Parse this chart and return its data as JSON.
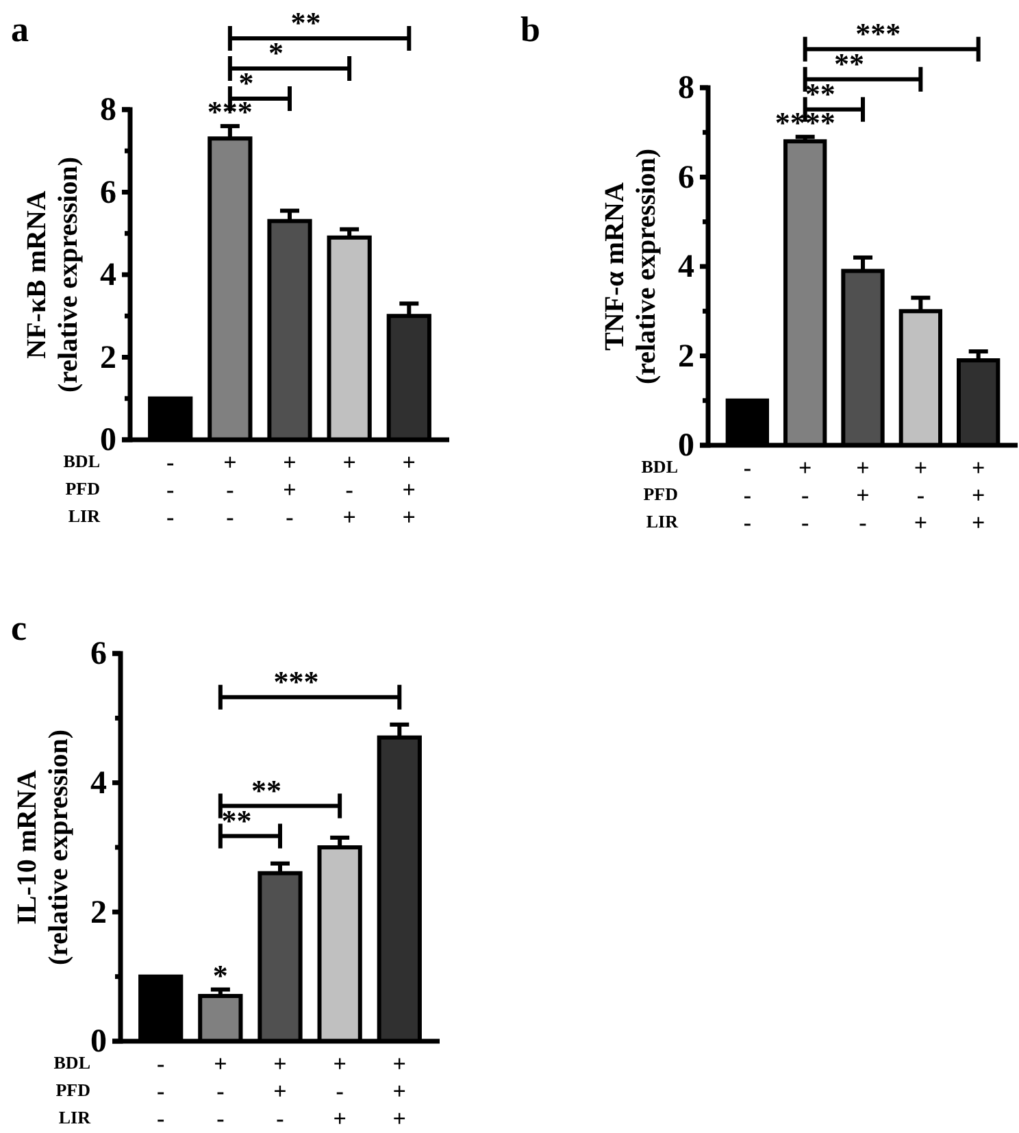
{
  "chart_data": [
    {
      "type": "bar",
      "title": "a",
      "ylabel": "NF-κB mRNA\n(relative expression)",
      "xlabel": "BDL\nPFD\nLIR",
      "categories": [
        "-\n-\n-",
        "+\n-\n-",
        "+\n+\n-",
        "+\n-\n+",
        "+\n+\n+"
      ],
      "values": [
        1,
        7.3,
        5.3,
        4.9,
        3.0
      ],
      "errors": [
        null,
        0.3,
        0.25,
        0.2,
        0.3
      ],
      "colors": [
        "#000000",
        "#808080",
        "#505050",
        "#c0c0c0",
        "#303030"
      ],
      "ylim": [
        0,
        8
      ],
      "yticks": [
        0,
        {
          "value": 1,
          "label": null
        },
        2,
        {
          "value": 3,
          "label": null
        },
        4,
        {
          "value": 5,
          "label": null
        },
        6,
        {
          "value": 7,
          "label": null
        },
        8
      ],
      "grid": false,
      "annotations": [
        "***",
        "*",
        "*",
        "**"
      ]
    },
    {
      "type": "bar",
      "title": "b",
      "ylabel": "TNF-α mRNA\n(relative expression)",
      "xlabel": "BDL\nPFD\nLIR",
      "categories": [
        "-\n-\n-",
        "+\n-\n-",
        "+\n+\n-",
        "+\n-\n+",
        "+\n+\n+"
      ],
      "values": [
        1,
        6.8,
        3.9,
        3.0,
        1.9
      ],
      "errors": [
        null,
        0.1,
        0.3,
        0.3,
        0.2
      ],
      "colors": [
        "#000000",
        "#808080",
        "#505050",
        "#c0c0c0",
        "#303030"
      ],
      "ylim": [
        0,
        8
      ],
      "yticks": [
        0,
        {
          "value": 1,
          "label": null
        },
        2,
        {
          "value": 3,
          "label": null
        },
        4,
        {
          "value": 5,
          "label": null
        },
        6,
        {
          "value": 7,
          "label": null
        },
        8
      ],
      "grid": false,
      "annotations": [
        "****",
        "**",
        "**",
        "***"
      ]
    },
    {
      "type": "bar",
      "title": "c",
      "ylabel": "IL-10 mRNA\n(relative expression)",
      "xlabel": "BDL\nPFD\nLIR",
      "categories": [
        "-\n-\n-",
        "+\n-\n-",
        "+\n+\n-",
        "+\n-\n+",
        "+\n+\n+"
      ],
      "values": [
        1,
        0.7,
        2.6,
        3.0,
        4.7
      ],
      "errors": [
        null,
        0.1,
        0.15,
        0.15,
        0.2
      ],
      "colors": [
        "#000000",
        "#808080",
        "#505050",
        "#c0c0c0",
        "#303030"
      ],
      "ylim": [
        0,
        6
      ],
      "yticks": [
        0,
        {
          "value": 1,
          "label": null
        },
        2,
        {
          "value": 3,
          "label": null
        },
        4,
        {
          "value": 5,
          "label": null
        },
        6
      ],
      "grid": false,
      "annotations": [
        "*",
        "**",
        "**",
        "***"
      ]
    }
  ]
}
